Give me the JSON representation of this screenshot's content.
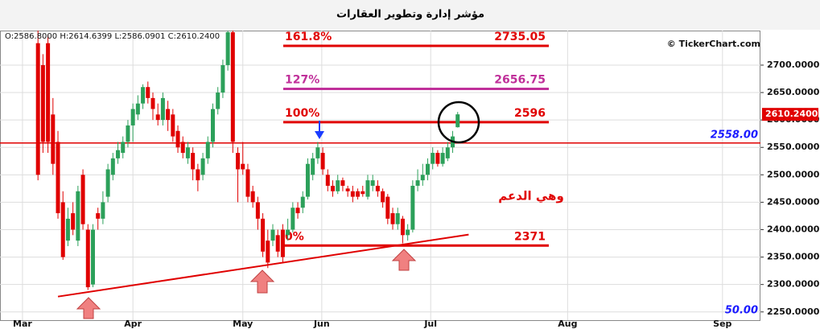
{
  "chart_data": {
    "type": "candlestick",
    "title": "مؤشر إدارة وتطوير العقارات",
    "info": "O:2586.8000 H:2614.6399 L:2586.0901 C:2610.2400",
    "watermark": "© TickerChart.com",
    "annotation": "وهي الدعم",
    "indicator_label": "50.00",
    "xlim": [
      -7.6,
      144.6
    ],
    "xticks": [
      {
        "value": -3.1,
        "label": "Mar"
      },
      {
        "value": 19,
        "label": "Apr"
      },
      {
        "value": 41,
        "label": "May"
      },
      {
        "value": 56.8,
        "label": "Jun"
      },
      {
        "value": 78.6,
        "label": "Jul"
      },
      {
        "value": 106,
        "label": "Aug"
      },
      {
        "value": 137,
        "label": "Sep"
      }
    ],
    "ylim": [
      2235,
      2763
    ],
    "yticks": [
      {
        "value": 2250,
        "label": "2250.0000"
      },
      {
        "value": 2300,
        "label": "2300.0000"
      },
      {
        "value": 2350,
        "label": "2350.0000"
      },
      {
        "value": 2400,
        "label": "2400.0000"
      },
      {
        "value": 2450,
        "label": "2450.0000"
      },
      {
        "value": 2500,
        "label": "2500.0000"
      },
      {
        "value": 2550,
        "label": "2550.0000"
      },
      {
        "value": 2600,
        "label": "2600.0000"
      },
      {
        "value": 2650,
        "label": "2650.0000"
      },
      {
        "value": 2700,
        "label": "2700.0000"
      }
    ],
    "grid": true,
    "up_color": "#2ca05a",
    "down_color": "#e00000",
    "x": [
      0,
      1,
      2,
      3,
      4,
      5,
      6,
      7,
      8,
      9,
      10,
      11,
      12,
      13,
      14,
      15,
      16,
      17,
      18,
      19,
      20,
      21,
      22,
      23,
      24,
      25,
      26,
      27,
      28,
      29,
      30,
      31,
      32,
      33,
      34,
      35,
      36,
      37,
      38,
      39,
      40,
      41,
      42,
      43,
      44,
      45,
      46,
      47,
      48,
      49,
      50,
      51,
      52,
      53,
      54,
      55,
      56,
      57,
      58,
      59,
      60,
      61,
      62,
      63,
      64,
      65,
      66,
      67,
      68,
      69,
      70,
      71,
      72,
      73,
      74,
      75,
      76,
      77,
      78,
      79,
      80,
      81,
      82,
      83,
      84
    ],
    "open": [
      2740,
      2700,
      2740,
      2610,
      2560,
      2450,
      2380,
      2430,
      2380,
      2500,
      2400,
      2300,
      2430,
      2420,
      2460,
      2500,
      2530,
      2540,
      2560,
      2590,
      2610,
      2630,
      2660,
      2640,
      2610,
      2600,
      2620,
      2610,
      2580,
      2560,
      2530,
      2540,
      2510,
      2500,
      2530,
      2560,
      2620,
      2650,
      2700,
      2760,
      2540,
      2520,
      2510,
      2470,
      2450,
      2420,
      2380,
      2380,
      2390,
      2400,
      2390,
      2400,
      2440,
      2440,
      2460,
      2500,
      2530,
      2540,
      2500,
      2480,
      2470,
      2490,
      2475,
      2470,
      2470,
      2470,
      2460,
      2480,
      2480,
      2470,
      2460,
      2430,
      2410,
      2420,
      2390,
      2400,
      2480,
      2490,
      2500,
      2520,
      2540,
      2520,
      2530,
      2550,
      2586.8
    ],
    "high": [
      2763,
      2720,
      2755,
      2640,
      2580,
      2470,
      2440,
      2450,
      2480,
      2510,
      2410,
      2410,
      2440,
      2470,
      2520,
      2540,
      2560,
      2570,
      2600,
      2630,
      2645,
      2665,
      2670,
      2650,
      2630,
      2650,
      2635,
      2620,
      2590,
      2570,
      2560,
      2550,
      2520,
      2540,
      2570,
      2630,
      2660,
      2710,
      2763,
      2763,
      2550,
      2560,
      2520,
      2480,
      2460,
      2430,
      2400,
      2410,
      2400,
      2410,
      2420,
      2450,
      2450,
      2470,
      2530,
      2540,
      2560,
      2550,
      2510,
      2490,
      2500,
      2495,
      2480,
      2480,
      2475,
      2480,
      2500,
      2500,
      2490,
      2475,
      2465,
      2440,
      2440,
      2425,
      2410,
      2490,
      2510,
      2520,
      2530,
      2550,
      2545,
      2550,
      2560,
      2580,
      2614.6399
    ],
    "low": [
      2490,
      2540,
      2540,
      2500,
      2420,
      2345,
      2370,
      2390,
      2370,
      2400,
      2290,
      2295,
      2400,
      2410,
      2450,
      2490,
      2520,
      2530,
      2550,
      2560,
      2600,
      2620,
      2630,
      2600,
      2590,
      2590,
      2580,
      2560,
      2540,
      2530,
      2520,
      2490,
      2470,
      2490,
      2520,
      2550,
      2610,
      2640,
      2690,
      2540,
      2450,
      2500,
      2450,
      2440,
      2400,
      2350,
      2330,
      2370,
      2350,
      2340,
      2380,
      2395,
      2420,
      2430,
      2455,
      2490,
      2520,
      2500,
      2470,
      2460,
      2465,
      2470,
      2460,
      2450,
      2455,
      2460,
      2455,
      2470,
      2460,
      2440,
      2410,
      2400,
      2400,
      2375,
      2380,
      2395,
      2470,
      2480,
      2490,
      2510,
      2515,
      2515,
      2525,
      2540,
      2586.0901
    ],
    "close": [
      2500,
      2560,
      2560,
      2520,
      2430,
      2350,
      2420,
      2400,
      2470,
      2410,
      2295,
      2400,
      2420,
      2450,
      2510,
      2530,
      2545,
      2560,
      2590,
      2620,
      2630,
      2660,
      2640,
      2620,
      2600,
      2640,
      2600,
      2570,
      2550,
      2540,
      2550,
      2510,
      2490,
      2530,
      2560,
      2620,
      2650,
      2700,
      2760,
      2560,
      2510,
      2510,
      2460,
      2450,
      2420,
      2360,
      2340,
      2400,
      2360,
      2350,
      2400,
      2440,
      2430,
      2460,
      2520,
      2530,
      2550,
      2510,
      2480,
      2470,
      2490,
      2480,
      2470,
      2460,
      2460,
      2465,
      2490,
      2490,
      2470,
      2450,
      2420,
      2410,
      2430,
      2390,
      2400,
      2480,
      2490,
      2500,
      2520,
      2540,
      2520,
      2540,
      2550,
      2570,
      2610.24
    ],
    "last_price": {
      "value": 2610.24,
      "label": "2610.2400"
    },
    "hline": {
      "value": 2558,
      "label": "2558.00",
      "color": "#e00000"
    },
    "trendline": {
      "x": [
        4,
        86.2
      ],
      "y": [
        2278,
        2391
      ],
      "color": "#e00000"
    },
    "levels": [
      {
        "label": "161.8%",
        "value": 2735.05,
        "color": "#e00000"
      },
      {
        "label": "127%",
        "value": 2656.75,
        "color": "#c0309a"
      },
      {
        "label": "100%",
        "value": 2596,
        "color": "#e00000"
      },
      {
        "label": "0%",
        "value": 2371,
        "color": "#e00000"
      }
    ]
  }
}
